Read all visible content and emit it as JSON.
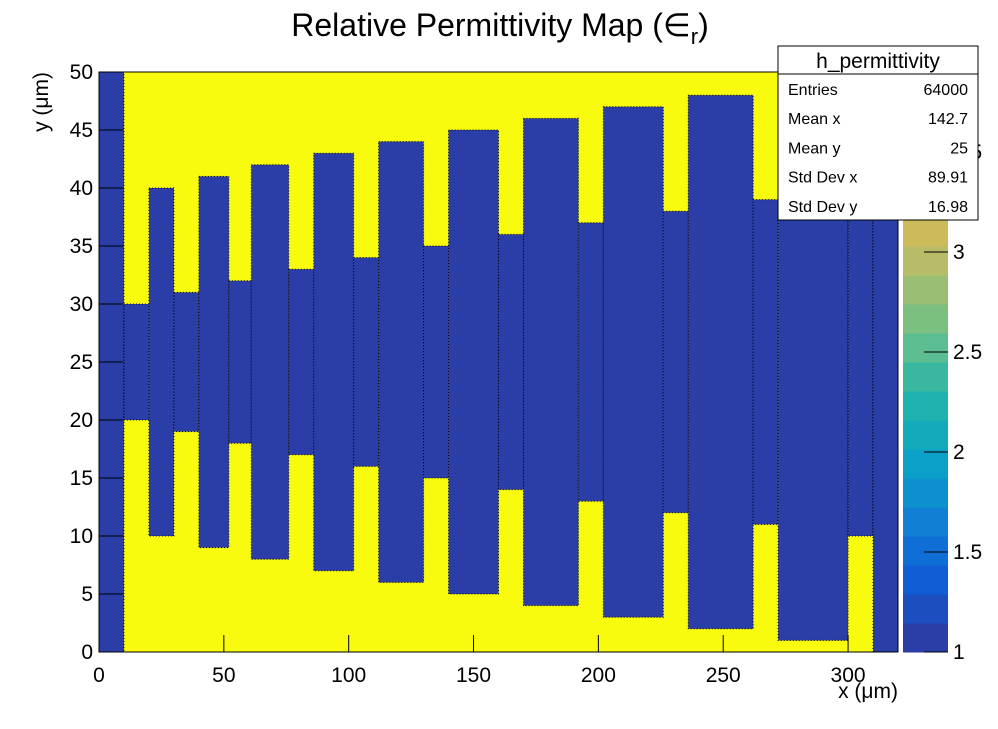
{
  "chart_data": {
    "type": "heatmap",
    "title": [
      "Relative Permittivity Map (∈",
      "r",
      ")"
    ],
    "x_label": "x (μm)",
    "y_label": "y (μm)",
    "xlim": [
      0,
      320
    ],
    "xticks": [
      0,
      50,
      100,
      150,
      200,
      250,
      300
    ],
    "ylim": [
      0,
      50
    ],
    "yticks": [
      0,
      5,
      10,
      15,
      20,
      25,
      30,
      35,
      40,
      45,
      50
    ],
    "zlim": [
      1,
      3.9
    ],
    "zticks": [
      1,
      1.5,
      2,
      2.5,
      3,
      3.5
    ],
    "palette": [
      "#2b3ea8",
      "#0e5fd8",
      "#1184d4",
      "#0aa5c5",
      "#26b6a8",
      "#6ebf87",
      "#aebd6b",
      "#dfb952",
      "#f6d52e",
      "#f9fb0e"
    ],
    "palette_bands": 20,
    "background_value": 3.9,
    "band_value": 1,
    "x_edges": [
      0,
      10,
      20,
      30,
      40,
      52,
      61,
      76,
      86,
      102,
      112,
      130,
      140,
      160,
      170,
      192,
      202,
      226,
      236,
      262,
      272,
      300,
      310,
      320
    ],
    "band_bottom": [
      0,
      20,
      10,
      19,
      9,
      18,
      8,
      17,
      7,
      16,
      6,
      15,
      5,
      14,
      4,
      13,
      3,
      12,
      2,
      11,
      1,
      10,
      0
    ],
    "band_top": [
      50,
      30,
      40,
      31,
      41,
      32,
      42,
      33,
      43,
      34,
      44,
      35,
      45,
      36,
      46,
      37,
      47,
      38,
      48,
      39,
      49,
      40,
      50
    ],
    "stats": {
      "title": "h_permittivity",
      "rows": [
        [
          "Entries",
          64000
        ],
        [
          "Mean x",
          142.7
        ],
        [
          "Mean y",
          25
        ],
        [
          "Std Dev x",
          89.91
        ],
        [
          "Std Dev y",
          16.98
        ]
      ]
    }
  }
}
